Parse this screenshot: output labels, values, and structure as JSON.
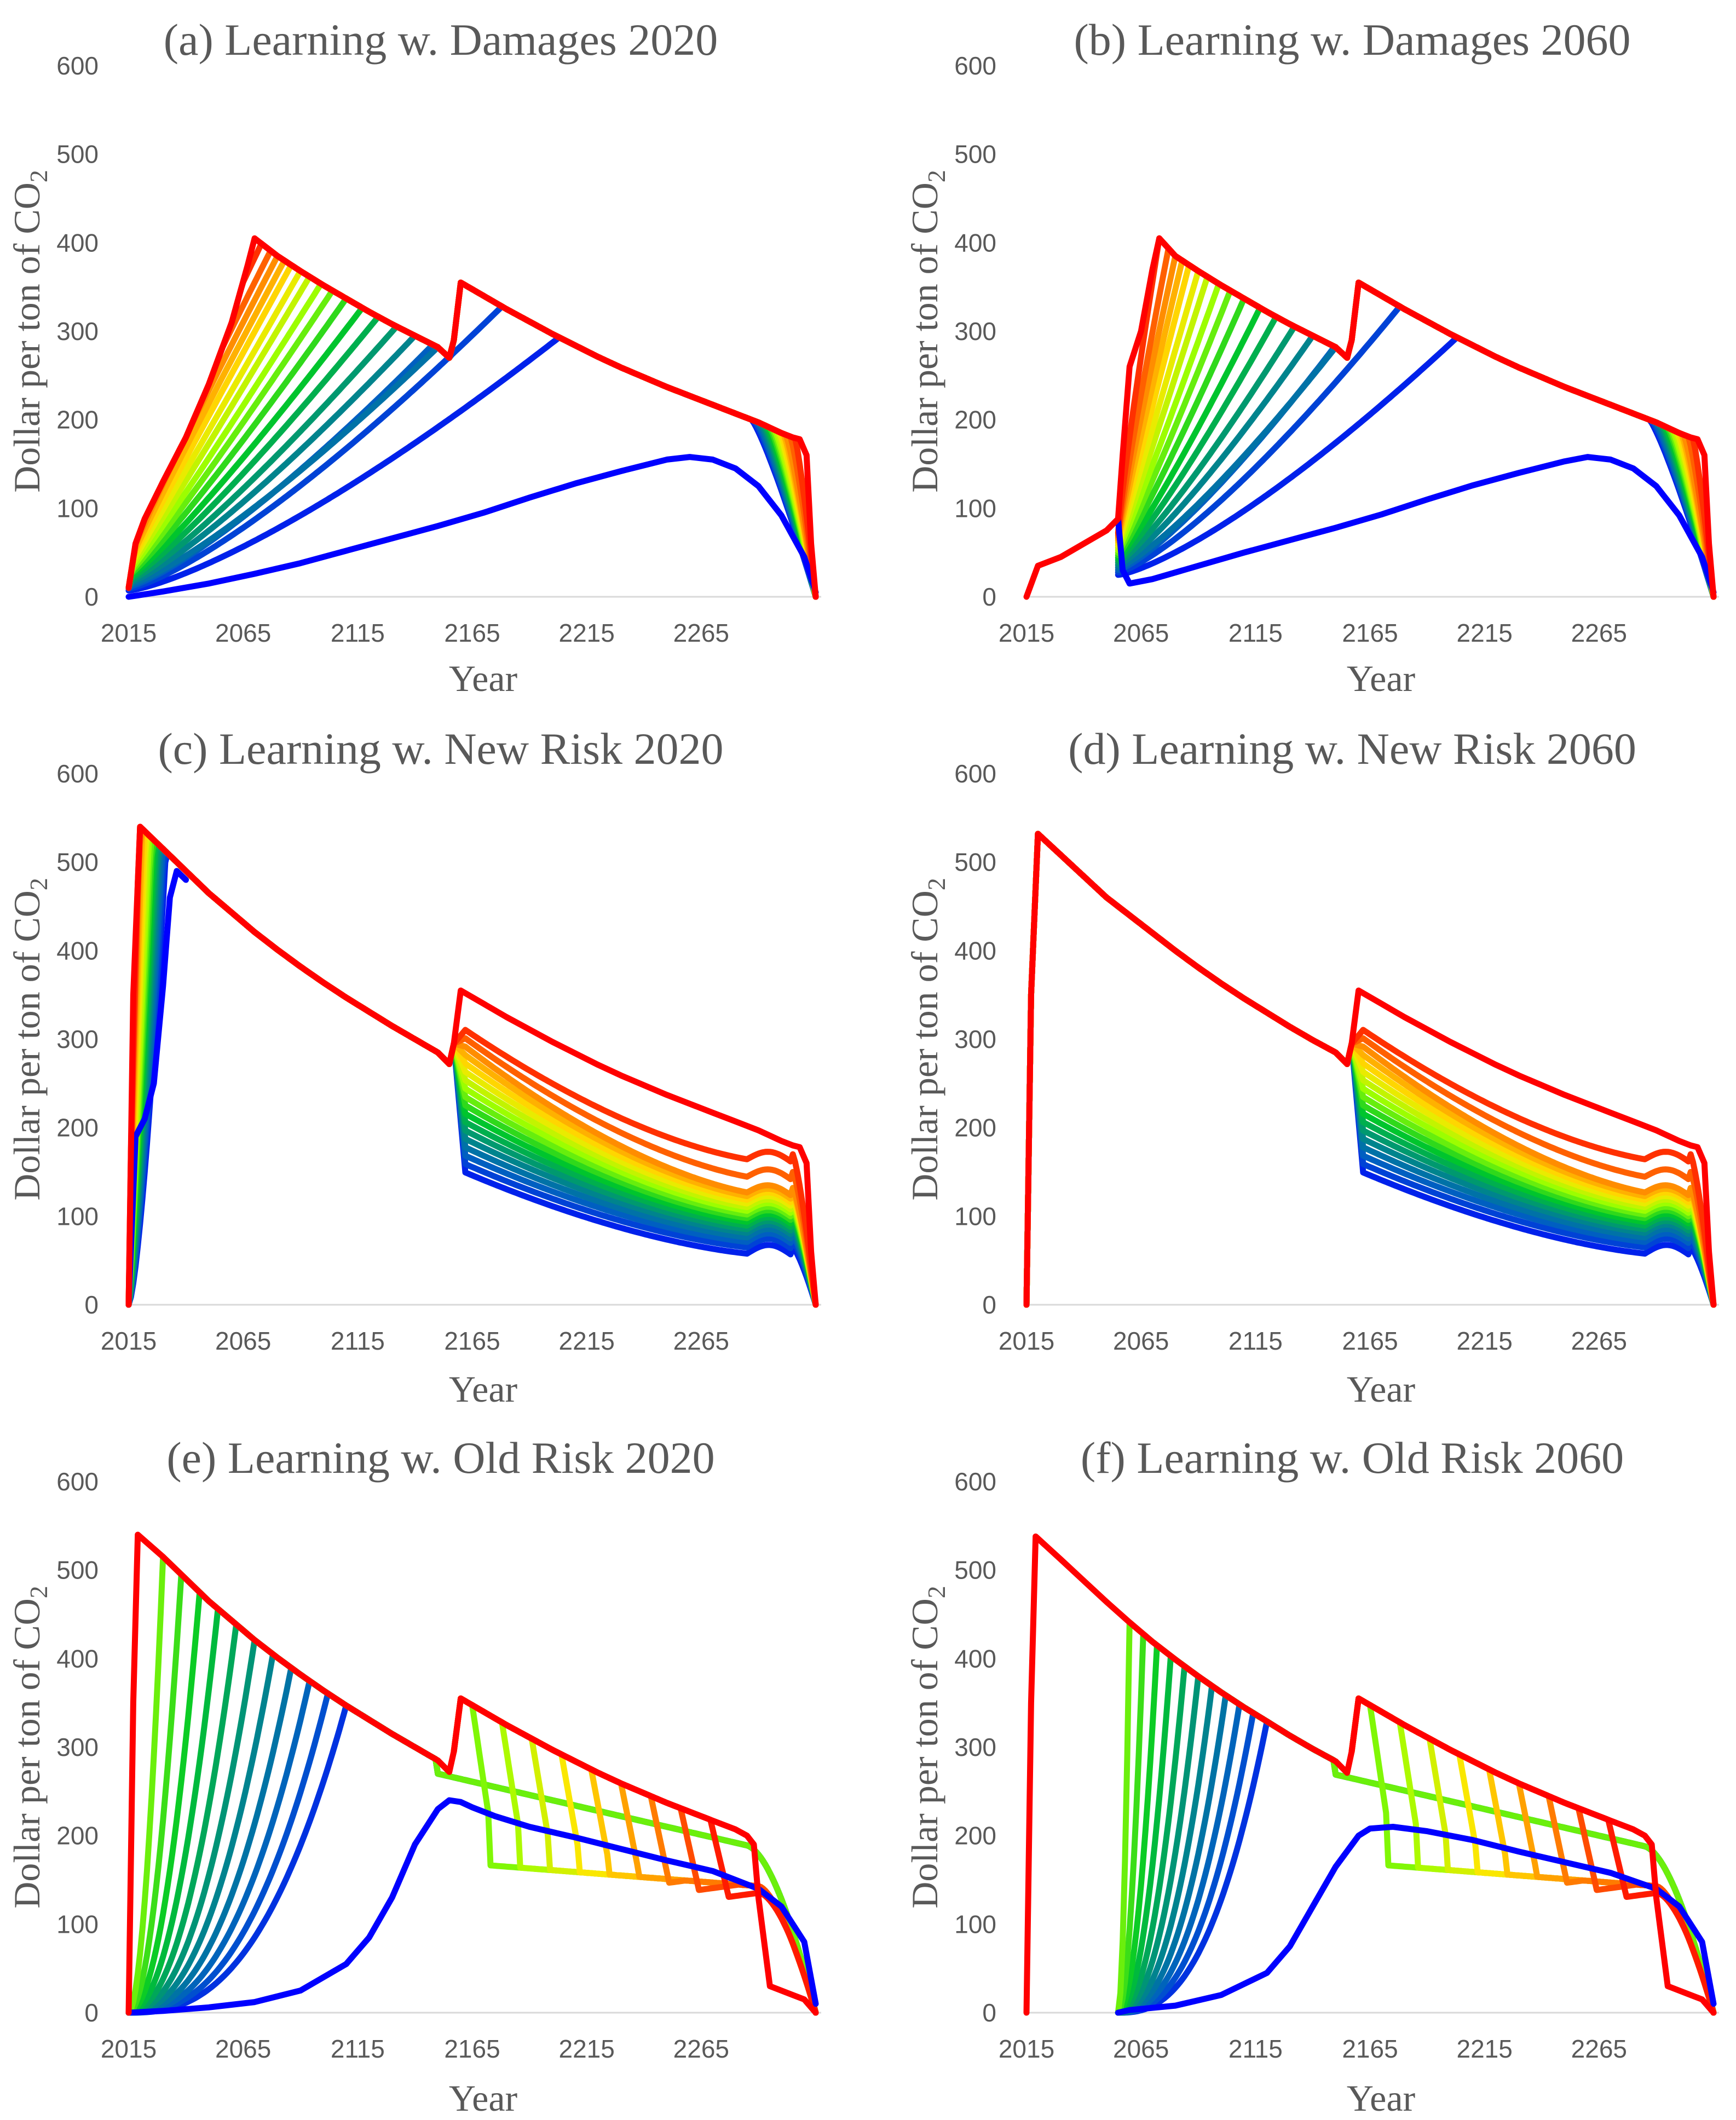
{
  "figure": {
    "background": "#ffffff",
    "text_color": "#595959"
  },
  "chart_data": [
    {
      "id": "a",
      "type": "line",
      "title": "(a) Learning w. Damages 2020",
      "xlabel": "Year",
      "ylabel": "Dollar per ton of CO",
      "ylabel_sub": "2",
      "xlim": [
        2015,
        2315
      ],
      "ylim": [
        0,
        600
      ],
      "xticks": [
        "2015",
        "2065",
        "2115",
        "2165",
        "2215",
        "2265"
      ],
      "yticks": [
        "0",
        "100",
        "200",
        "300",
        "400",
        "500",
        "600"
      ],
      "family": {
        "kind": "damages",
        "learn_year": 2015,
        "count": 20,
        "peaks": [
          2230,
          2203,
          2178,
          2158,
          2150,
          2140,
          2132,
          2124,
          2117,
          2110,
          2104,
          2099,
          2094,
          2090,
          2086,
          2083,
          2080,
          2077,
          2073,
          2070
        ],
        "drops": [
          2286,
          2287,
          2288,
          2289,
          2290,
          2291,
          2292,
          2293,
          2294,
          2295,
          2296,
          2297,
          2298,
          2299,
          2300,
          2301,
          2302,
          2304,
          2306,
          2308
        ]
      },
      "series": [
        {
          "name": "Envelope (red)",
          "color": "#ff0000",
          "x": [
            2015,
            2018,
            2022,
            2030,
            2040,
            2050,
            2060,
            2067,
            2070,
            2080,
            2090,
            2100,
            2110,
            2120,
            2130,
            2140,
            2150,
            2155,
            2157,
            2160,
            2170,
            2180,
            2190,
            2200,
            2210,
            2220,
            2230,
            2240,
            2250,
            2260,
            2270,
            2280,
            2290,
            2300,
            2305,
            2308,
            2311,
            2313,
            2315
          ],
          "y": [
            10,
            60,
            88,
            130,
            180,
            240,
            310,
            375,
            405,
            385,
            368,
            352,
            337,
            322,
            308,
            295,
            282,
            270,
            290,
            355,
            340,
            325,
            311,
            297,
            284,
            271,
            259,
            248,
            237,
            227,
            217,
            207,
            197,
            185,
            180,
            178,
            160,
            60,
            0
          ]
        },
        {
          "name": "Blue (earliest learning)",
          "color": "#0000ff",
          "x": [
            2015,
            2030,
            2050,
            2070,
            2090,
            2110,
            2130,
            2150,
            2170,
            2190,
            2210,
            2230,
            2250,
            2260,
            2270,
            2280,
            2290,
            2300,
            2310,
            2315
          ],
          "y": [
            0,
            6,
            15,
            26,
            38,
            52,
            66,
            80,
            95,
            112,
            128,
            142,
            155,
            158,
            155,
            145,
            125,
            92,
            45,
            5
          ]
        }
      ]
    },
    {
      "id": "b",
      "type": "line",
      "title": "(b) Learning w. Damages 2060",
      "xlabel": "Year",
      "ylabel": "Dollar per ton of CO",
      "ylabel_sub": "2",
      "xlim": [
        2015,
        2315
      ],
      "ylim": [
        0,
        600
      ],
      "xticks": [
        "2015",
        "2065",
        "2115",
        "2165",
        "2215",
        "2265"
      ],
      "yticks": [
        "0",
        "100",
        "200",
        "300",
        "400",
        "500",
        "600"
      ],
      "family": {
        "kind": "damages",
        "learn_year": 2055,
        "count": 20,
        "peaks": [
          2230,
          2203,
          2178,
          2158,
          2150,
          2140,
          2132,
          2124,
          2117,
          2110,
          2104,
          2099,
          2094,
          2090,
          2086,
          2083,
          2080,
          2077,
          2073,
          2070
        ],
        "drops": [
          2286,
          2287,
          2288,
          2289,
          2290,
          2291,
          2292,
          2293,
          2294,
          2295,
          2296,
          2297,
          2298,
          2299,
          2300,
          2301,
          2302,
          2304,
          2306,
          2308
        ]
      },
      "series": [
        {
          "name": "Envelope (red)",
          "color": "#ff0000",
          "x": [
            2015,
            2020,
            2030,
            2040,
            2050,
            2055,
            2057,
            2060,
            2065,
            2070,
            2073,
            2080,
            2090,
            2100,
            2110,
            2120,
            2130,
            2140,
            2150,
            2155,
            2157,
            2160,
            2170,
            2180,
            2190,
            2200,
            2210,
            2220,
            2230,
            2240,
            2250,
            2260,
            2270,
            2280,
            2290,
            2300,
            2305,
            2308,
            2311,
            2313,
            2315
          ],
          "y": [
            0,
            35,
            45,
            60,
            75,
            88,
            160,
            260,
            300,
            370,
            405,
            385,
            368,
            352,
            337,
            322,
            308,
            295,
            282,
            270,
            290,
            355,
            340,
            325,
            311,
            297,
            284,
            271,
            259,
            248,
            237,
            227,
            217,
            207,
            197,
            185,
            180,
            178,
            160,
            60,
            0
          ]
        },
        {
          "name": "Blue (earliest learning)",
          "color": "#0000ff",
          "x": [
            2055,
            2057,
            2060,
            2070,
            2090,
            2110,
            2130,
            2150,
            2170,
            2190,
            2210,
            2230,
            2250,
            2260,
            2270,
            2280,
            2290,
            2300,
            2310,
            2315
          ],
          "y": [
            88,
            30,
            15,
            20,
            35,
            50,
            64,
            78,
            93,
            110,
            126,
            140,
            153,
            158,
            155,
            145,
            125,
            92,
            45,
            5
          ]
        }
      ]
    },
    {
      "id": "c",
      "type": "line",
      "title": "(c) Learning w. New Risk 2020",
      "xlabel": "Year",
      "ylabel": "Dollar per ton of CO",
      "ylabel_sub": "2",
      "xlim": [
        2015,
        2315
      ],
      "ylim": [
        0,
        600
      ],
      "xticks": [
        "2015",
        "2065",
        "2115",
        "2165",
        "2215",
        "2265"
      ],
      "yticks": [
        "0",
        "100",
        "200",
        "300",
        "400",
        "500",
        "600"
      ],
      "family": {
        "kind": "newrisk",
        "early_rise": true,
        "count": 20,
        "ends": [
          45,
          55,
          62,
          68,
          73,
          78,
          82,
          86,
          90,
          94,
          98,
          102,
          106,
          110,
          114,
          118,
          122,
          140,
          160,
          175
        ]
      },
      "series": [
        {
          "name": "Envelope (red)",
          "color": "#ff0000",
          "x": [
            2015,
            2017,
            2020,
            2030,
            2040,
            2050,
            2060,
            2070,
            2080,
            2090,
            2100,
            2110,
            2120,
            2130,
            2140,
            2150,
            2155,
            2157,
            2160,
            2170,
            2180,
            2190,
            2200,
            2210,
            2220,
            2230,
            2240,
            2250,
            2260,
            2270,
            2280,
            2290,
            2300,
            2305,
            2308,
            2311,
            2313,
            2315
          ],
          "y": [
            0,
            350,
            540,
            515,
            490,
            465,
            443,
            421,
            401,
            382,
            364,
            347,
            331,
            315,
            300,
            285,
            272,
            295,
            355,
            340,
            325,
            311,
            297,
            284,
            271,
            259,
            248,
            237,
            227,
            217,
            207,
            197,
            185,
            180,
            178,
            160,
            60,
            0
          ]
        },
        {
          "name": "Blue (earliest learning)",
          "color": "#0000ff",
          "x": [
            2015,
            2018,
            2022,
            2026,
            2030,
            2033,
            2036,
            2040
          ],
          "y": [
            0,
            190,
            210,
            250,
            360,
            460,
            490,
            480
          ]
        }
      ]
    },
    {
      "id": "d",
      "type": "line",
      "title": "(d) Learning w. New Risk 2060",
      "xlabel": "Year",
      "ylabel": "Dollar per ton of CO",
      "ylabel_sub": "2",
      "xlim": [
        2015,
        2315
      ],
      "ylim": [
        0,
        600
      ],
      "xticks": [
        "2015",
        "2065",
        "2115",
        "2165",
        "2215",
        "2265"
      ],
      "yticks": [
        "0",
        "100",
        "200",
        "300",
        "400",
        "500",
        "600"
      ],
      "family": {
        "kind": "newrisk",
        "early_rise": false,
        "count": 20,
        "ends": [
          45,
          55,
          62,
          68,
          73,
          78,
          82,
          86,
          90,
          94,
          98,
          102,
          106,
          110,
          114,
          118,
          122,
          140,
          160,
          175
        ]
      },
      "series": [
        {
          "name": "Envelope (red)",
          "color": "#ff0000",
          "x": [
            2015,
            2017,
            2020,
            2030,
            2040,
            2050,
            2060,
            2070,
            2080,
            2090,
            2100,
            2110,
            2120,
            2130,
            2140,
            2150,
            2155,
            2157,
            2160,
            2170,
            2180,
            2190,
            2200,
            2210,
            2220,
            2230,
            2240,
            2250,
            2260,
            2270,
            2280,
            2290,
            2300,
            2305,
            2308,
            2311,
            2313,
            2315
          ],
          "y": [
            0,
            350,
            532,
            508,
            484,
            460,
            440,
            420,
            400,
            381,
            363,
            346,
            330,
            314,
            299,
            285,
            272,
            295,
            355,
            340,
            325,
            311,
            297,
            284,
            271,
            259,
            248,
            237,
            227,
            217,
            207,
            197,
            185,
            180,
            178,
            160,
            60,
            0
          ]
        }
      ]
    },
    {
      "id": "e",
      "type": "line",
      "title": "(e) Learning w. Old Risk 2020",
      "xlabel": "Year",
      "ylabel": "Dollar per ton of CO",
      "ylabel_sub": "2",
      "xlim": [
        2015,
        2315
      ],
      "ylim": [
        0,
        600
      ],
      "xticks": [
        "2015",
        "2065",
        "2115",
        "2165",
        "2215",
        "2265"
      ],
      "yticks": [
        "0",
        "100",
        "200",
        "300",
        "400",
        "500",
        "600"
      ],
      "family": {
        "kind": "oldrisk",
        "cool_start": 2015,
        "count": 20,
        "cool_tops": [
          2030,
          2038,
          2046,
          2054,
          2062,
          2070,
          2078,
          2086,
          2094,
          2102,
          2110
        ],
        "warm_tops": [
          2165,
          2178,
          2191,
          2204,
          2217,
          2230,
          2243,
          2256,
          2269
        ]
      },
      "series": [
        {
          "name": "Envelope (red)",
          "color": "#ff0000",
          "x": [
            2015,
            2017,
            2019,
            2030,
            2040,
            2050,
            2060,
            2070,
            2080,
            2090,
            2100,
            2110,
            2120,
            2130,
            2140,
            2150,
            2155,
            2157,
            2160,
            2170,
            2180,
            2190,
            2200,
            2210,
            2220,
            2230,
            2240,
            2250,
            2260,
            2270,
            2280,
            2285,
            2288,
            2290,
            2295,
            2305,
            2310,
            2315
          ],
          "y": [
            0,
            350,
            540,
            515,
            490,
            465,
            443,
            421,
            401,
            382,
            364,
            347,
            331,
            315,
            300,
            285,
            272,
            295,
            355,
            340,
            325,
            311,
            297,
            284,
            271,
            259,
            248,
            237,
            227,
            217,
            207,
            200,
            190,
            130,
            30,
            20,
            15,
            0
          ]
        },
        {
          "name": "Blue (earliest learning)",
          "color": "#0000ff",
          "x": [
            2015,
            2030,
            2050,
            2070,
            2090,
            2110,
            2120,
            2130,
            2140,
            2150,
            2155,
            2160,
            2165,
            2175,
            2190,
            2210,
            2230,
            2250,
            2270,
            2290,
            2300,
            2310,
            2315
          ],
          "y": [
            0,
            2,
            6,
            12,
            25,
            55,
            85,
            130,
            190,
            230,
            240,
            238,
            232,
            222,
            210,
            198,
            185,
            172,
            160,
            140,
            120,
            80,
            10
          ]
        }
      ]
    },
    {
      "id": "f",
      "type": "line",
      "title": "(f) Learning w. Old Risk 2060",
      "xlabel": "Year",
      "ylabel": "Dollar per ton of CO",
      "ylabel_sub": "2",
      "xlim": [
        2015,
        2315
      ],
      "ylim": [
        0,
        600
      ],
      "xticks": [
        "2015",
        "2065",
        "2115",
        "2165",
        "2215",
        "2265"
      ],
      "yticks": [
        "0",
        "100",
        "200",
        "300",
        "400",
        "500",
        "600"
      ],
      "family": {
        "kind": "oldrisk",
        "cool_start": 2055,
        "count": 20,
        "cool_tops": [
          2060,
          2066,
          2072,
          2078,
          2084,
          2090,
          2096,
          2102,
          2108,
          2114,
          2120
        ],
        "warm_tops": [
          2165,
          2178,
          2191,
          2204,
          2217,
          2230,
          2243,
          2256,
          2269
        ]
      },
      "series": [
        {
          "name": "Envelope (red)",
          "color": "#ff0000",
          "x": [
            2015,
            2017,
            2019,
            2030,
            2040,
            2050,
            2060,
            2070,
            2080,
            2090,
            2100,
            2110,
            2120,
            2130,
            2140,
            2150,
            2155,
            2157,
            2160,
            2170,
            2180,
            2190,
            2200,
            2210,
            2220,
            2230,
            2240,
            2250,
            2260,
            2270,
            2280,
            2285,
            2288,
            2290,
            2295,
            2305,
            2310,
            2315
          ],
          "y": [
            0,
            350,
            538,
            512,
            488,
            464,
            441,
            419,
            399,
            380,
            362,
            345,
            329,
            313,
            298,
            284,
            271,
            295,
            355,
            340,
            325,
            311,
            297,
            284,
            271,
            259,
            248,
            237,
            227,
            217,
            207,
            200,
            190,
            130,
            30,
            20,
            15,
            0
          ]
        },
        {
          "name": "Blue (earliest learning)",
          "color": "#0000ff",
          "x": [
            2055,
            2060,
            2080,
            2100,
            2120,
            2130,
            2140,
            2150,
            2160,
            2165,
            2175,
            2190,
            2210,
            2230,
            2250,
            2270,
            2290,
            2300,
            2310,
            2315
          ],
          "y": [
            0,
            3,
            8,
            20,
            45,
            75,
            120,
            165,
            200,
            208,
            210,
            205,
            195,
            182,
            170,
            158,
            140,
            120,
            80,
            10
          ]
        }
      ]
    }
  ]
}
